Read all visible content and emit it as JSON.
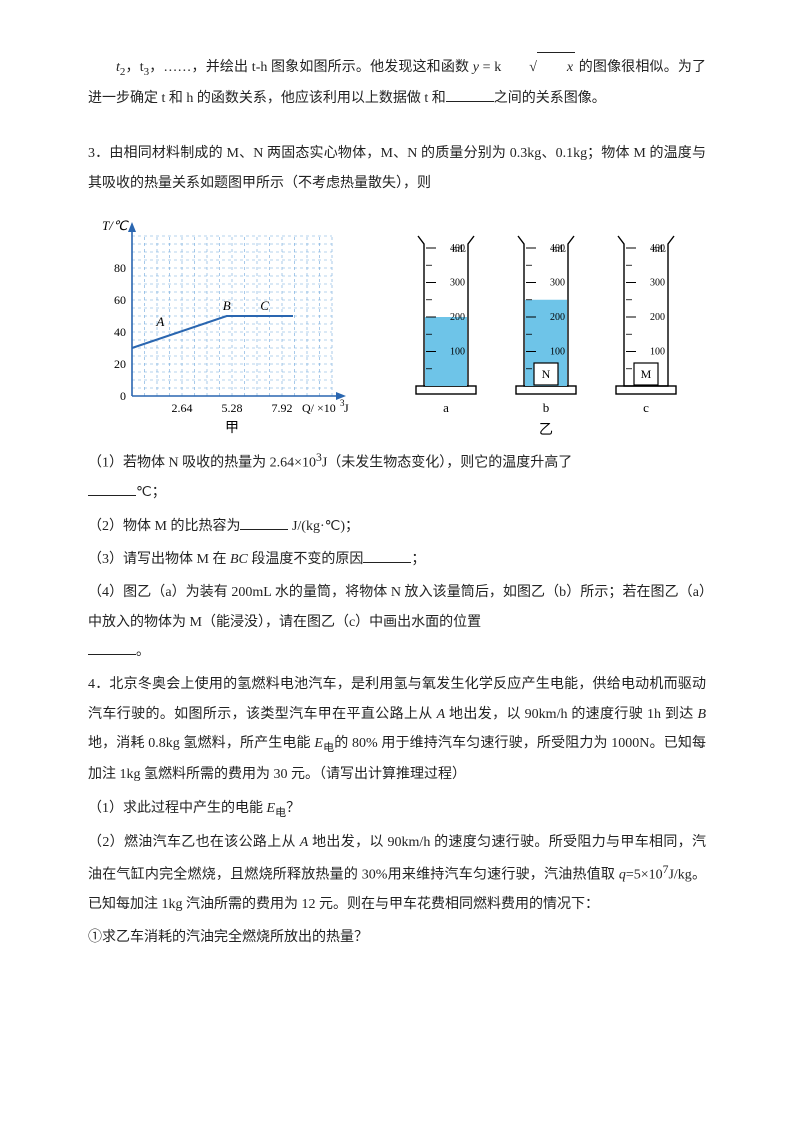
{
  "p1": {
    "seg1": "t",
    "seg1sub2": "2",
    "seg2": "，t",
    "seg2sub3": "3",
    "seg3": "，……，并绘出 t-h 图象如图所示。他发现这和函数 ",
    "formula_y": "y",
    "formula_eq": " = k",
    "formula_x": "x",
    "seg4": " 的图像很相似。为了进一步确定 t 和 h 的函数关系，他应该利用以上数据做 t 和",
    "seg5": "之间的关系图像。"
  },
  "q3": {
    "intro": "3．由相同材料制成的 M、N 两固态实心物体，M、N 的质量分别为 0.3kg、0.1kg；物体 M 的温度与其吸收的热量关系如题图甲所示（不考虑热量散失），则",
    "chart": {
      "y_label": "T/℃",
      "x_label_prefix": "Q/ ×10",
      "x_label_sup": "3",
      "x_label_suffix": "J",
      "y_ticks": [
        0,
        20,
        40,
        60,
        80
      ],
      "x_ticks": [
        2.64,
        5.28,
        7.92
      ],
      "points": {
        "A": {
          "x": 1.5,
          "y": 40,
          "label": "A"
        },
        "B": {
          "x": 5.0,
          "y": 50,
          "label": "B"
        },
        "C": {
          "x": 7.0,
          "y": 50,
          "label": "C"
        }
      },
      "line_start": {
        "x": 0,
        "y": 30
      },
      "caption": "甲",
      "grid_color": "#6fa8dc",
      "axis_color": "#2a66b0",
      "curve_color": "#2a66b0"
    },
    "cylinders": {
      "a": {
        "unit": "mL",
        "ticks": [
          100,
          200,
          300,
          400
        ],
        "fill": 200,
        "label": "a",
        "block": null
      },
      "b": {
        "unit": "mL",
        "ticks": [
          100,
          200,
          300,
          400
        ],
        "fill": 250,
        "label": "b",
        "block": "N"
      },
      "c": {
        "unit": "mL",
        "ticks": [
          100,
          200,
          300,
          400
        ],
        "fill": 0,
        "label": "c",
        "block": "M"
      },
      "group_caption": "乙",
      "water_color": "#6ec4e8",
      "outline_color": "#000000",
      "tick_fontsize": 10
    },
    "sub1_a": "（1）若物体 N 吸收的热量为 2.64×10",
    "sub1_sup": "3",
    "sub1_b": "J（未发生物态变化），则它的温度升高了",
    "sub1_unit": "℃；",
    "sub2_a": "（2）物体 M 的比热容为",
    "sub2_unit": " J/(kg·℃)；",
    "sub3_a": "（3）请写出物体 M 在 ",
    "sub3_bc": "BC",
    "sub3_b": " 段温度不变的原因",
    "sub3_end": "；",
    "sub4": "（4）图乙（a）为装有 200mL 水的量筒，将物体 N 放入该量筒后，如图乙（b）所示；若在图乙（a）中放入的物体为 M（能浸没），请在图乙（c）中画出水面的位置",
    "sub4_end": "。"
  },
  "q4": {
    "intro_a": "4．北京冬奥会上使用的氢燃料电池汽车，是利用氢与氧发生化学反应产生电能，供给电动机而驱动汽车行驶的。如图所示，该类型汽车甲在平直公路上从 ",
    "intro_A": "A",
    "intro_b": " 地出发，以 90km/h 的速度行驶 1h 到达 ",
    "intro_B": "B",
    "intro_c": " 地，消耗 0.8kg 氢燃料，所产生电能 ",
    "intro_E": "E",
    "intro_sub": "电",
    "intro_d": "的 80% 用于维持汽车匀速行驶，所受阻力为 1000N。已知每加注 1kg 氢燃料所需的费用为 30 元。（请写出计算推理过程）",
    "sub1_a": "（1）求此过程中产生的电能 ",
    "sub1_E": "E",
    "sub1_sub": "电",
    "sub1_end": "？",
    "sub2_a": "（2）燃油汽车乙也在该公路上从 ",
    "sub2_A": "A",
    "sub2_b": " 地出发，以 90km/h 的速度匀速行驶。所受阻力与甲车相同，汽油在气缸内完全燃烧，且燃烧所释放热量的 30%用来维持汽车匀速行驶，汽油热值取 ",
    "sub2_q": "q",
    "sub2_c": "=5×10",
    "sub2_sup": "7",
    "sub2_d": "J/kg。已知每加注 1kg 汽油所需的费用为 12 元。则在与甲车花费相同燃料费用的情况下：",
    "sub2_1": "①求乙车消耗的汽油完全燃烧所放出的热量？"
  }
}
